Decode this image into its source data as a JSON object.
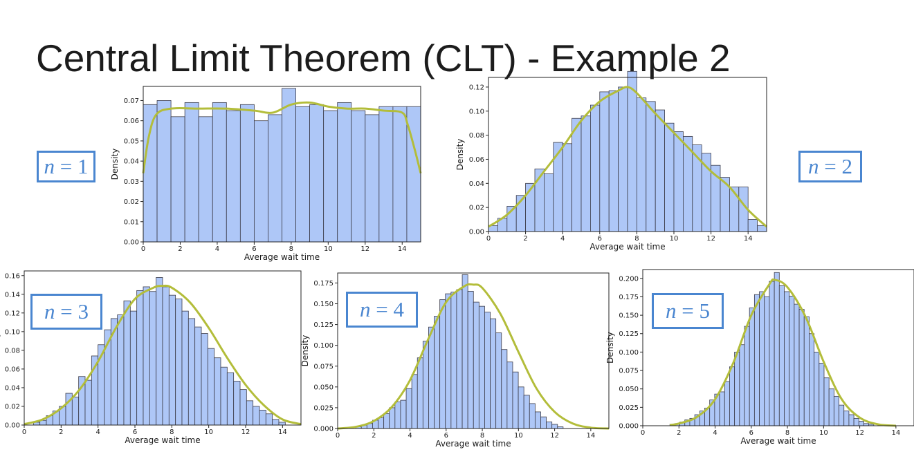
{
  "slide": {
    "title": "Central Limit Theorem (CLT) - Example 2"
  },
  "colors": {
    "bar_fill": "#aec7f7",
    "bar_edge": "#3b3b48",
    "kde": "#b3bd3a",
    "label_box": "#4a86d0"
  },
  "chart_data": [
    {
      "type": "bar",
      "label": {
        "var": "n",
        "eq": " = ",
        "value": "1"
      },
      "xlabel": "Average wait time",
      "ylabel": "Density",
      "xlim": [
        0,
        15
      ],
      "ylim": [
        0,
        0.077
      ],
      "xticks": [
        0,
        2,
        4,
        6,
        8,
        10,
        12,
        14
      ],
      "yticks": [
        0.0,
        0.01,
        0.02,
        0.03,
        0.04,
        0.05,
        0.06,
        0.07
      ],
      "ytick_labels": [
        "0.00",
        "0.01",
        "0.02",
        "0.03",
        "0.04",
        "0.05",
        "0.06",
        "0.07"
      ],
      "bins": {
        "start": 0,
        "width": 0.75
      },
      "values": [
        0.068,
        0.07,
        0.062,
        0.069,
        0.062,
        0.069,
        0.065,
        0.068,
        0.06,
        0.063,
        0.076,
        0.067,
        0.068,
        0.065,
        0.069,
        0.065,
        0.063,
        0.067,
        0.067,
        0.067
      ],
      "kde": {
        "x": [
          0,
          0.3,
          0.7,
          1.5,
          3,
          4.5,
          6,
          7,
          8,
          9,
          10,
          11,
          12,
          13,
          14,
          14.3,
          14.7,
          15
        ],
        "y": [
          0.034,
          0.052,
          0.063,
          0.066,
          0.066,
          0.066,
          0.065,
          0.064,
          0.068,
          0.069,
          0.067,
          0.066,
          0.066,
          0.065,
          0.064,
          0.058,
          0.045,
          0.034
        ]
      }
    },
    {
      "type": "bar",
      "label": {
        "var": "n",
        "eq": " = ",
        "value": "2"
      },
      "xlabel": "Average wait time",
      "ylabel": "Density",
      "xlim": [
        0,
        15
      ],
      "ylim": [
        0,
        0.128
      ],
      "xticks": [
        0,
        2,
        4,
        6,
        8,
        10,
        12,
        14
      ],
      "yticks": [
        0.0,
        0.02,
        0.04,
        0.06,
        0.08,
        0.1,
        0.12
      ],
      "ytick_labels": [
        "0.00",
        "0.02",
        "0.04",
        "0.06",
        "0.08",
        "0.10",
        "0.12"
      ],
      "bins": {
        "start": 0,
        "width": 0.5
      },
      "values": [
        0.005,
        0.011,
        0.021,
        0.03,
        0.04,
        0.052,
        0.048,
        0.074,
        0.073,
        0.094,
        0.096,
        0.105,
        0.116,
        0.117,
        0.12,
        0.133,
        0.111,
        0.108,
        0.101,
        0.09,
        0.083,
        0.079,
        0.072,
        0.065,
        0.055,
        0.045,
        0.037,
        0.037,
        0.01,
        0.005
      ],
      "kde": {
        "x": [
          0,
          1,
          2,
          3,
          4,
          5,
          6,
          7,
          7.5,
          8,
          9,
          10,
          11,
          12,
          13,
          14,
          15
        ],
        "y": [
          0.004,
          0.014,
          0.03,
          0.05,
          0.07,
          0.092,
          0.108,
          0.117,
          0.12,
          0.115,
          0.098,
          0.082,
          0.066,
          0.05,
          0.037,
          0.018,
          0.004
        ]
      }
    },
    {
      "type": "bar",
      "label": {
        "var": "n",
        "eq": " = ",
        "value": "3"
      },
      "xlabel": "Average wait time",
      "ylabel": "Density",
      "xlim": [
        0,
        15
      ],
      "ylim": [
        0,
        0.165
      ],
      "xticks": [
        0,
        2,
        4,
        6,
        8,
        10,
        12,
        14
      ],
      "yticks": [
        0.0,
        0.02,
        0.04,
        0.06,
        0.08,
        0.1,
        0.12,
        0.14,
        0.16
      ],
      "ytick_labels": [
        "0.00",
        "0.02",
        "0.04",
        "0.06",
        "0.08",
        "0.10",
        "0.12",
        "0.14",
        "0.16"
      ],
      "bins": {
        "start": 0.5,
        "width": 0.35
      },
      "values": [
        0.003,
        0.005,
        0.01,
        0.015,
        0.02,
        0.034,
        0.03,
        0.052,
        0.048,
        0.074,
        0.086,
        0.102,
        0.114,
        0.118,
        0.133,
        0.122,
        0.144,
        0.148,
        0.143,
        0.158,
        0.148,
        0.139,
        0.135,
        0.122,
        0.114,
        0.105,
        0.098,
        0.082,
        0.072,
        0.062,
        0.056,
        0.047,
        0.038,
        0.026,
        0.02,
        0.016,
        0.012,
        0.006,
        0.003
      ],
      "kde": {
        "x": [
          0,
          1,
          2,
          3,
          4,
          5,
          6,
          7,
          7.5,
          8,
          9,
          10,
          11,
          12,
          13,
          14,
          15
        ],
        "y": [
          0.001,
          0.006,
          0.018,
          0.038,
          0.068,
          0.105,
          0.135,
          0.147,
          0.149,
          0.147,
          0.131,
          0.104,
          0.072,
          0.043,
          0.021,
          0.006,
          0.001
        ]
      }
    },
    {
      "type": "bar",
      "label": {
        "var": "n",
        "eq": " = ",
        "value": "4"
      },
      "xlabel": "Average wait time",
      "ylabel": "Density",
      "xlim": [
        0,
        15
      ],
      "ylim": [
        0,
        0.187
      ],
      "xticks": [
        0,
        2,
        4,
        6,
        8,
        10,
        12,
        14
      ],
      "yticks": [
        0.0,
        0.025,
        0.05,
        0.075,
        0.1,
        0.125,
        0.15,
        0.175
      ],
      "ytick_labels": [
        "0.000",
        "0.025",
        "0.050",
        "0.075",
        "0.100",
        "0.125",
        "0.150",
        "0.175"
      ],
      "bins": {
        "start": 1.0,
        "width": 0.31
      },
      "values": [
        0.002,
        0.004,
        0.006,
        0.01,
        0.013,
        0.018,
        0.025,
        0.032,
        0.034,
        0.048,
        0.065,
        0.085,
        0.105,
        0.122,
        0.135,
        0.155,
        0.162,
        0.164,
        0.167,
        0.185,
        0.165,
        0.152,
        0.147,
        0.14,
        0.132,
        0.115,
        0.095,
        0.08,
        0.068,
        0.05,
        0.04,
        0.03,
        0.02,
        0.014,
        0.008,
        0.005,
        0.002
      ],
      "kde": {
        "x": [
          0,
          1,
          2,
          3,
          4,
          5,
          6,
          7,
          7.5,
          8,
          9,
          10,
          11,
          12,
          13,
          14,
          15
        ],
        "y": [
          0.0,
          0.002,
          0.009,
          0.026,
          0.058,
          0.107,
          0.152,
          0.171,
          0.173,
          0.169,
          0.138,
          0.092,
          0.048,
          0.02,
          0.006,
          0.001,
          0.0
        ]
      }
    },
    {
      "type": "bar",
      "label": {
        "var": "n",
        "eq": " = ",
        "value": "5"
      },
      "xlabel": "Average wait time",
      "ylabel": "Density",
      "xlim": [
        0,
        15
      ],
      "ylim": [
        0,
        0.212
      ],
      "xticks": [
        0,
        2,
        4,
        6,
        8,
        10,
        12,
        14
      ],
      "yticks": [
        0.0,
        0.025,
        0.05,
        0.075,
        0.1,
        0.125,
        0.15,
        0.175,
        0.2
      ],
      "ytick_labels": [
        "0.000",
        "0.025",
        "0.050",
        "0.075",
        "0.100",
        "0.125",
        "0.150",
        "0.175",
        "0.200"
      ],
      "bins": {
        "start": 1.5,
        "width": 0.275
      },
      "values": [
        0.002,
        0.003,
        0.005,
        0.008,
        0.01,
        0.015,
        0.02,
        0.024,
        0.035,
        0.043,
        0.046,
        0.06,
        0.08,
        0.1,
        0.11,
        0.135,
        0.16,
        0.178,
        0.182,
        0.175,
        0.196,
        0.208,
        0.19,
        0.182,
        0.176,
        0.165,
        0.158,
        0.148,
        0.125,
        0.1,
        0.085,
        0.065,
        0.05,
        0.04,
        0.028,
        0.02,
        0.015,
        0.01,
        0.006,
        0.003,
        0.002
      ],
      "kde": {
        "x": [
          1.5,
          2,
          3,
          4,
          5,
          6,
          7,
          7.3,
          8,
          9,
          10,
          11,
          12,
          13,
          14
        ],
        "y": [
          0.001,
          0.003,
          0.012,
          0.036,
          0.085,
          0.15,
          0.192,
          0.198,
          0.188,
          0.148,
          0.087,
          0.036,
          0.011,
          0.002,
          0.0
        ]
      }
    }
  ]
}
